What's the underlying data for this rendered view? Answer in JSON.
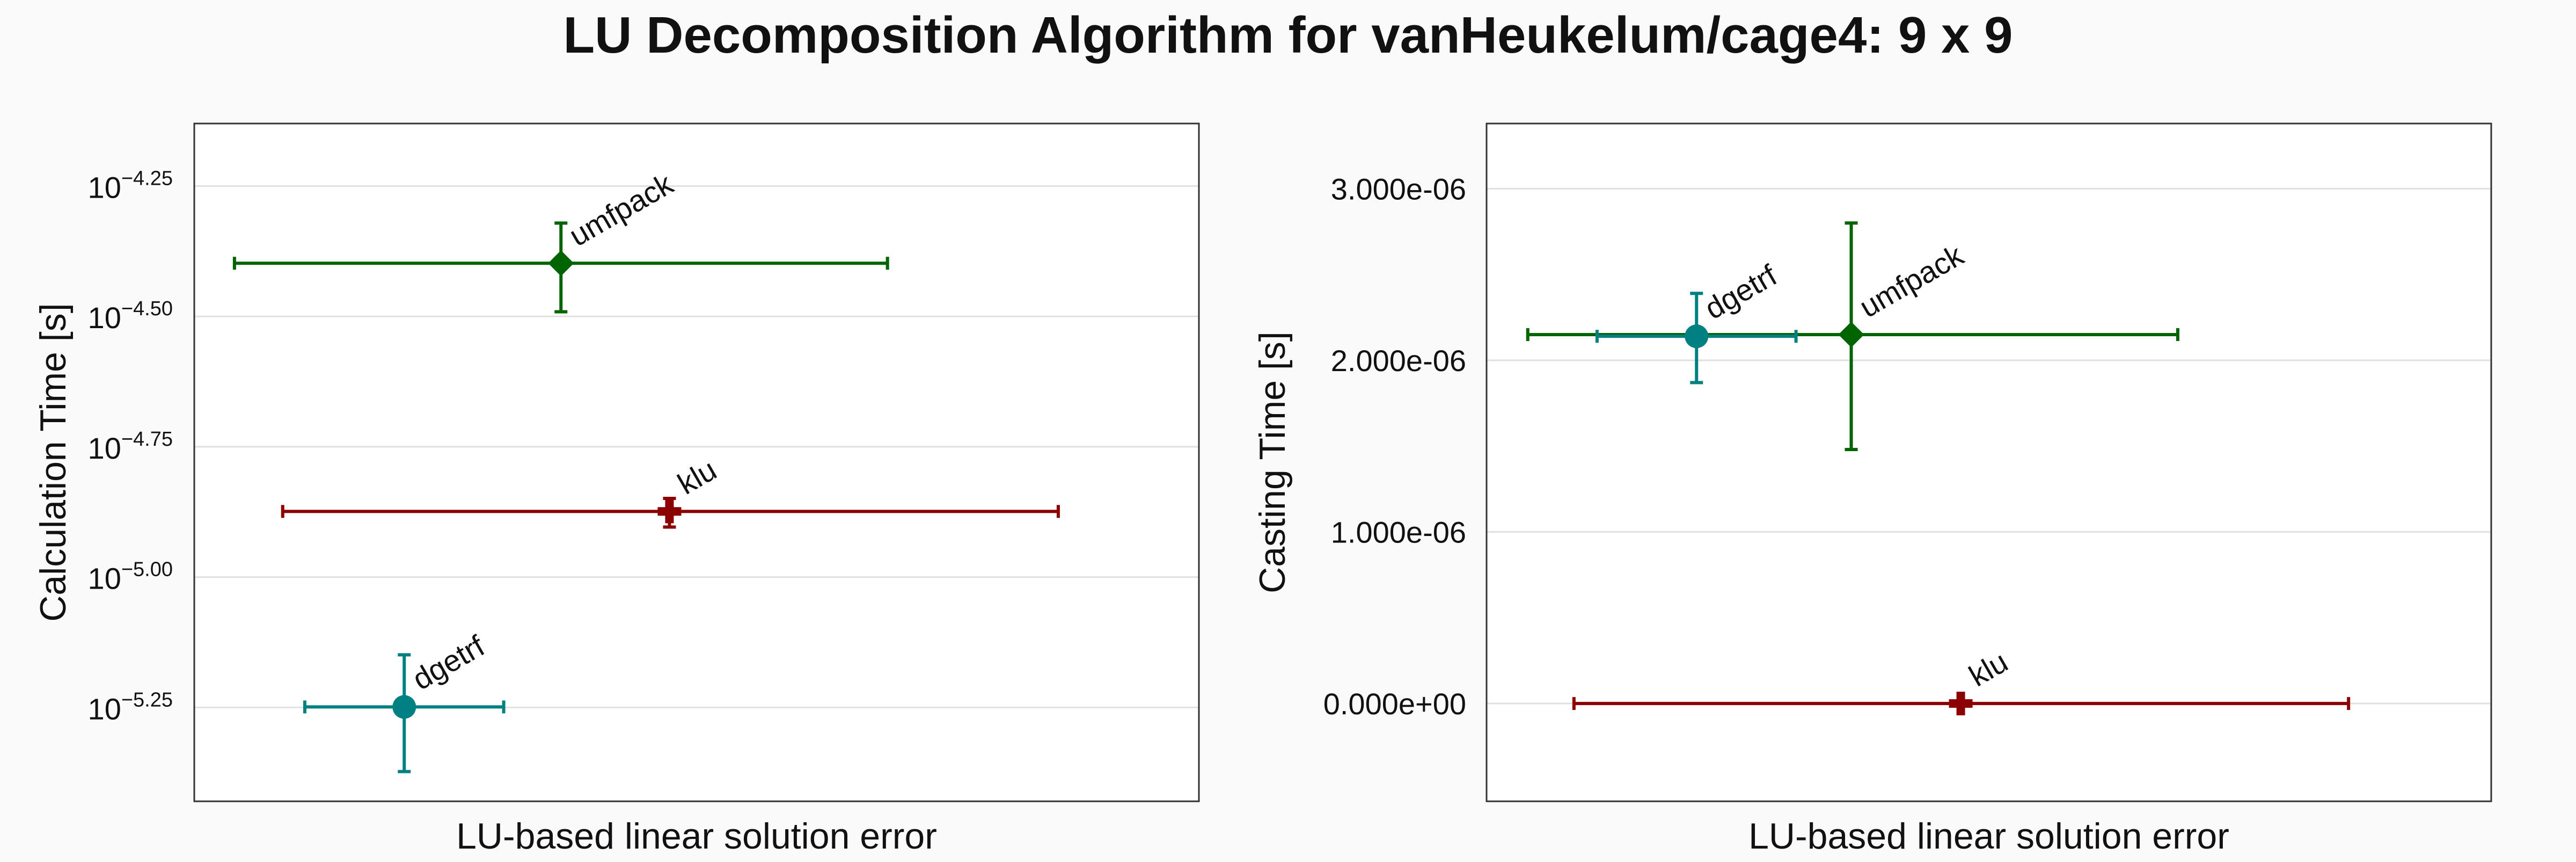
{
  "figure": {
    "title": "LU Decomposition Algorithm for vanHeukelum/cage4: 9 x 9"
  },
  "colors": {
    "umfpack": "#006400",
    "klu": "#8b0000",
    "dgetrf": "#008080",
    "background": "#fafafa",
    "grid": "#e0e0e0"
  },
  "chart_data": [
    {
      "type": "scatter",
      "title": "",
      "xlabel": "LU-based linear solution error",
      "ylabel": "Calculation Time [s]",
      "yscale": "log",
      "xticks_shown": false,
      "ylim_log10": [
        -5.43,
        -4.13
      ],
      "yticks_log10": [
        -4.25,
        -4.5,
        -4.75,
        -5.0,
        -5.25
      ],
      "ytick_labels": [
        "−4.25",
        "−4.50",
        "−4.75",
        "−5.00",
        "−5.25"
      ],
      "ytick_base": "10",
      "grid": true,
      "legend": "none (points labeled)",
      "series": [
        {
          "name": "umfpack",
          "marker": "diamond",
          "x": 0.365,
          "x_err": [
            0.325,
            0.325
          ],
          "y_log10": -4.398,
          "y_err_log10": [
            0.093,
            0.077
          ]
        },
        {
          "name": "klu",
          "marker": "cross",
          "x": 0.473,
          "x_err": [
            0.385,
            0.387
          ],
          "y_log10": -4.874,
          "y_err_log10": [
            0.03,
            0.025
          ]
        },
        {
          "name": "dgetrf",
          "marker": "circle",
          "x": 0.209,
          "x_err": [
            0.099,
            0.099
          ],
          "y_log10": -5.249,
          "y_err_log10": [
            0.124,
            0.1
          ]
        }
      ]
    },
    {
      "type": "scatter",
      "title": "",
      "xlabel": "LU-based linear solution error",
      "ylabel": "Casting Time [s]",
      "yscale": "linear",
      "xticks_shown": false,
      "ylim": [
        -5.7e-07,
        3.38e-06
      ],
      "yticks": [
        0.0,
        1e-06,
        2e-06,
        3e-06
      ],
      "ytick_labels": [
        "0.000e+00",
        "1.000e-06",
        "2.000e-06",
        "3.000e-06"
      ],
      "grid": true,
      "legend": "none (points labeled)",
      "series": [
        {
          "name": "umfpack",
          "marker": "diamond",
          "x": 0.363,
          "x_err": [
            0.322,
            0.325
          ],
          "y": 2.15e-06,
          "y_err": [
            6.7e-07,
            6.5e-07
          ]
        },
        {
          "name": "klu",
          "marker": "cross",
          "x": 0.472,
          "x_err": [
            0.385,
            0.386
          ],
          "y": 0.0,
          "y_err": [
            0.0,
            0.0
          ]
        },
        {
          "name": "dgetrf",
          "marker": "circle",
          "x": 0.209,
          "x_err": [
            0.099,
            0.099
          ],
          "y": 2.14e-06,
          "y_err": [
            2.7e-07,
            2.5e-07
          ]
        }
      ]
    }
  ]
}
